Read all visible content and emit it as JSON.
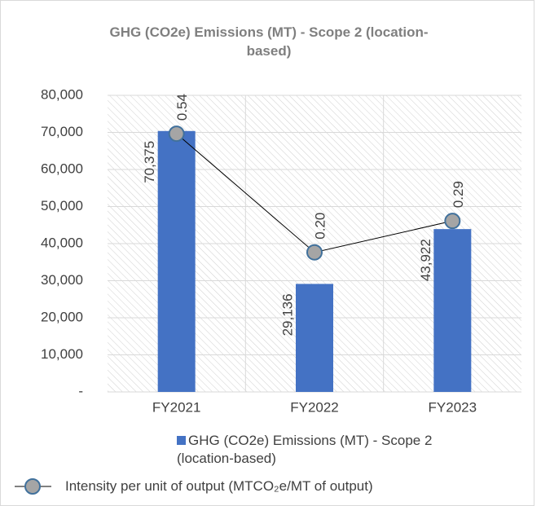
{
  "chart_data": {
    "type": "bar-line",
    "title": "GHG (CO2e) Emissions (MT) - Scope 2 (location-based)",
    "categories": [
      "FY2021",
      "FY2022",
      "FY2023"
    ],
    "series": [
      {
        "name": "GHG (CO2e) Emissions (MT) - Scope 2 (location-based)",
        "type": "bar",
        "color": "#4472c4",
        "values": [
          70375,
          29136,
          43922
        ],
        "value_labels": [
          "70,375",
          "29,136",
          "43,922"
        ]
      },
      {
        "name": "Intensity per unit of output (MTCO₂e/MT of output)",
        "type": "line",
        "axis": "y2",
        "color": "#a5a5a5",
        "values": [
          0.54,
          0.2,
          0.29
        ],
        "value_labels": [
          "0.54",
          "0.20",
          "0.29"
        ]
      }
    ],
    "ylim": [
      0,
      80000
    ],
    "yticks": [
      {
        "value": 0,
        "label": "-"
      },
      {
        "value": 10000,
        "label": "10,000"
      },
      {
        "value": 20000,
        "label": "20,000"
      },
      {
        "value": 30000,
        "label": "30,000"
      },
      {
        "value": 40000,
        "label": "40,000"
      },
      {
        "value": 50000,
        "label": "50,000"
      },
      {
        "value": 60000,
        "label": "60,000"
      },
      {
        "value": 70000,
        "label": "70,000"
      },
      {
        "value": 80000,
        "label": "80,000"
      }
    ],
    "y2lim": [
      -0.2,
      0.65
    ],
    "grid": true
  }
}
